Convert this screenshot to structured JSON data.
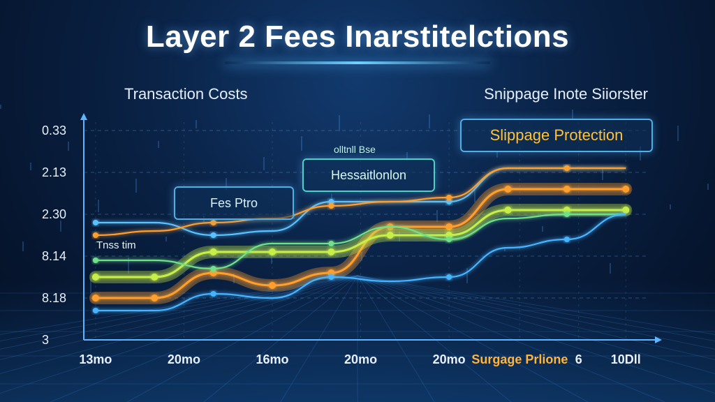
{
  "title": "Layer 2 Fees Inarstitelctions",
  "subtitles": {
    "left": "Transaction Costs",
    "right": "Snippage Inote Siiorster"
  },
  "callouts": {
    "protection": "Slippage Protection",
    "transaction": "Hessaitlonlon",
    "fee": "Fes Ptro",
    "small_note": "olltnll Bse",
    "tx_label": "Tnss tim"
  },
  "colors": {
    "background": "#0a2347",
    "orange": "#ff9f2e",
    "yellow_green": "#c8ef4a",
    "green": "#6fe08a",
    "blue": "#47b4ff"
  },
  "chart_data": {
    "type": "line",
    "title": "",
    "xlabel": "",
    "ylabel": "",
    "x": [
      0,
      1,
      2,
      3,
      4,
      5,
      6,
      7,
      8,
      9
    ],
    "xtick_labels": [
      {
        "x": 0,
        "label": "13mo"
      },
      {
        "x": 1.5,
        "label": "20mo"
      },
      {
        "x": 3,
        "label": "16mo"
      },
      {
        "x": 4.5,
        "label": "20mo"
      },
      {
        "x": 6,
        "label": "20mo"
      },
      {
        "x": 7.2,
        "label": "Surgage Prlione"
      },
      {
        "x": 8.2,
        "label": "6"
      },
      {
        "x": 9,
        "label": "10Dll"
      }
    ],
    "ytick_labels": [
      {
        "y": 0,
        "label": "3"
      },
      {
        "y": 1,
        "label": "8.18"
      },
      {
        "y": 2,
        "label": "8.14"
      },
      {
        "y": 3,
        "label": "2.30"
      },
      {
        "y": 4,
        "label": "2.13"
      },
      {
        "y": 5,
        "label": "0.33"
      }
    ],
    "ylim": [
      0,
      5.2
    ],
    "xlim": [
      -0.2,
      9.4
    ],
    "grid": true,
    "series": [
      {
        "color": "#ff9f2e",
        "band": true,
        "values": [
          1.0,
          1.0,
          1.6,
          1.3,
          1.6,
          2.7,
          2.7,
          3.6,
          3.6,
          3.6
        ]
      },
      {
        "color": "#c8ef4a",
        "band": true,
        "values": [
          1.5,
          1.5,
          2.1,
          2.1,
          2.1,
          2.5,
          2.5,
          3.1,
          3.1,
          3.1
        ]
      },
      {
        "color": "#6fe08a",
        "band": false,
        "values": [
          1.9,
          1.9,
          1.7,
          2.3,
          2.3,
          2.7,
          2.4,
          2.9,
          3.0,
          3.0
        ]
      },
      {
        "color": "#47b4ff",
        "band": false,
        "values": [
          0.7,
          0.7,
          1.1,
          1.0,
          1.5,
          1.4,
          1.5,
          2.2,
          2.4,
          3.0
        ]
      },
      {
        "color": "#5ac2ff",
        "band": false,
        "values": [
          2.8,
          2.8,
          2.5,
          2.6,
          3.3,
          3.3,
          3.3,
          4.1,
          4.1,
          4.1
        ]
      },
      {
        "color": "#ff9f2e",
        "band": false,
        "values": [
          2.5,
          2.6,
          2.8,
          2.9,
          3.2,
          3.3,
          3.4,
          4.1,
          4.1,
          4.1
        ]
      }
    ]
  }
}
